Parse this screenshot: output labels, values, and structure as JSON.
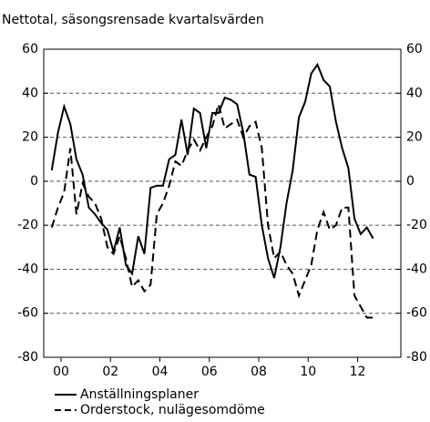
{
  "chart_data": {
    "type": "line",
    "subtitle": "Nettotal, säsongsrensade kvartalsvärden",
    "x": [
      2000.125,
      2000.375,
      2000.625,
      2000.875,
      2001.125,
      2001.375,
      2001.625,
      2001.875,
      2002.125,
      2002.375,
      2002.625,
      2002.875,
      2003.125,
      2003.375,
      2003.625,
      2003.875,
      2004.125,
      2004.375,
      2004.625,
      2004.875,
      2005.125,
      2005.375,
      2005.625,
      2005.875,
      2006.125,
      2006.375,
      2006.625,
      2006.875,
      2007.125,
      2007.375,
      2007.625,
      2007.875,
      2008.125,
      2008.375,
      2008.625,
      2008.875,
      2009.125,
      2009.375,
      2009.625,
      2009.875,
      2010.125,
      2010.375,
      2010.625,
      2010.875,
      2011.125,
      2011.375,
      2011.625,
      2011.875,
      2012.125,
      2012.375,
      2012.625,
      2012.875,
      2013.125
    ],
    "series": [
      {
        "name": "Anställningsplaner",
        "color": "#000000",
        "dash": "none",
        "values": [
          5,
          22,
          34,
          26,
          10,
          3,
          -12,
          -15,
          -19,
          -22,
          -32,
          -21,
          -38,
          -42,
          -25,
          -33,
          -3,
          -2,
          -2,
          10,
          12,
          28,
          12,
          33,
          31,
          15,
          31,
          31,
          38,
          37,
          35,
          22,
          3,
          2,
          -20,
          -35,
          -44,
          -30,
          -10,
          5,
          29,
          36,
          49,
          53,
          46,
          43,
          27,
          15,
          6,
          -17,
          -24,
          -21,
          -26
        ]
      },
      {
        "name": "Orderstock, nulägesomdöme",
        "color": "#000000",
        "dash": "9 5",
        "values": [
          -21,
          -12,
          -5,
          15,
          -15,
          -1,
          -7,
          -10,
          -17,
          -30,
          -33,
          -25,
          -35,
          -48,
          -45,
          -50,
          -47,
          -15,
          -10,
          -2,
          9,
          7,
          14,
          19,
          14,
          20,
          25,
          35,
          24,
          26,
          28,
          20,
          25,
          27,
          15,
          -20,
          -35,
          -32,
          -38,
          -42,
          -52,
          -45,
          -38,
          -22,
          -14,
          -22,
          -20,
          -12,
          -12,
          -52,
          -57,
          -62,
          -62
        ]
      }
    ],
    "xlim": [
      1999.8,
      2014.25
    ],
    "xticks": [
      {
        "value": 2000.5,
        "label": "00"
      },
      {
        "value": 2002.5,
        "label": "02"
      },
      {
        "value": 2004.5,
        "label": "04"
      },
      {
        "value": 2006.5,
        "label": "06"
      },
      {
        "value": 2008.5,
        "label": "08"
      },
      {
        "value": 2010.5,
        "label": "10"
      },
      {
        "value": 2012.5,
        "label": "12"
      }
    ],
    "ylim": [
      -80,
      60
    ],
    "yticks": [
      -80,
      -60,
      -40,
      -20,
      0,
      20,
      40,
      60
    ],
    "grid": true
  }
}
